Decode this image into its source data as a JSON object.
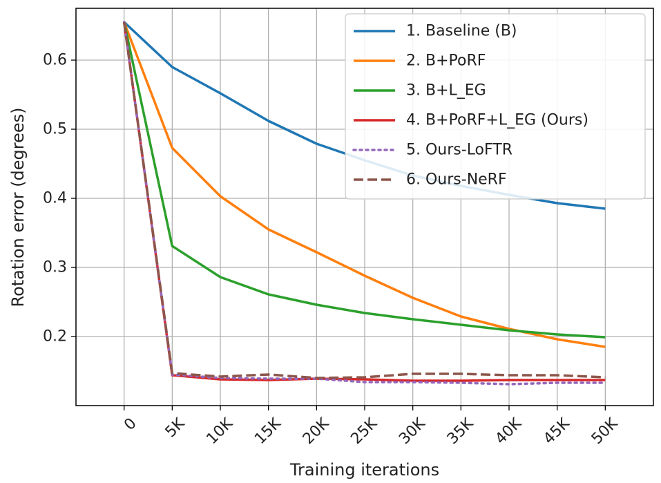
{
  "chart_data": {
    "type": "line",
    "title": "",
    "xlabel": "Training iterations",
    "ylabel": "Rotation error (degrees)",
    "x": [
      0,
      5000,
      10000,
      15000,
      20000,
      25000,
      30000,
      35000,
      40000,
      45000,
      50000
    ],
    "x_tick_labels": [
      "0",
      "5K",
      "10K",
      "15K",
      "20K",
      "25K",
      "30K",
      "35K",
      "40K",
      "45K",
      "50K"
    ],
    "y_ticks": [
      0.2,
      0.3,
      0.4,
      0.5,
      0.6
    ],
    "y_tick_labels": [
      "0.2",
      "0.3",
      "0.4",
      "0.5",
      "0.6"
    ],
    "xlim": [
      -5000,
      55000
    ],
    "ylim": [
      0.1,
      0.675
    ],
    "grid": true,
    "legend_position": "top-right",
    "series": [
      {
        "name": "1. Baseline (B)",
        "color": "#1f77b4",
        "dash": "solid",
        "values": [
          0.655,
          0.59,
          0.552,
          0.512,
          0.479,
          0.455,
          0.433,
          0.418,
          0.405,
          0.393,
          0.385
        ]
      },
      {
        "name": "2. B+PoRF",
        "color": "#ff7f0e",
        "dash": "solid",
        "values": [
          0.655,
          0.473,
          0.403,
          0.355,
          0.322,
          0.288,
          0.256,
          0.229,
          0.211,
          0.196,
          0.185
        ]
      },
      {
        "name": "3. B+L_EG",
        "color": "#2ca02c",
        "dash": "solid",
        "values": [
          0.655,
          0.331,
          0.286,
          0.261,
          0.246,
          0.234,
          0.225,
          0.217,
          0.209,
          0.203,
          0.199
        ]
      },
      {
        "name": "4. B+PoRF+L_EG (Ours)",
        "color": "#d62728",
        "dash": "solid",
        "values": [
          0.655,
          0.144,
          0.138,
          0.137,
          0.139,
          0.138,
          0.136,
          0.136,
          0.137,
          0.137,
          0.137
        ]
      },
      {
        "name": "5. Ours-LoFTR",
        "color": "#9467bd",
        "dash": "dotted",
        "values": [
          0.655,
          0.145,
          0.14,
          0.139,
          0.139,
          0.134,
          0.134,
          0.133,
          0.131,
          0.133,
          0.133
        ]
      },
      {
        "name": "6. Ours-NeRF",
        "color": "#8c564b",
        "dash": "dashed",
        "values": [
          0.655,
          0.147,
          0.142,
          0.145,
          0.14,
          0.141,
          0.146,
          0.146,
          0.144,
          0.144,
          0.141
        ]
      }
    ]
  }
}
